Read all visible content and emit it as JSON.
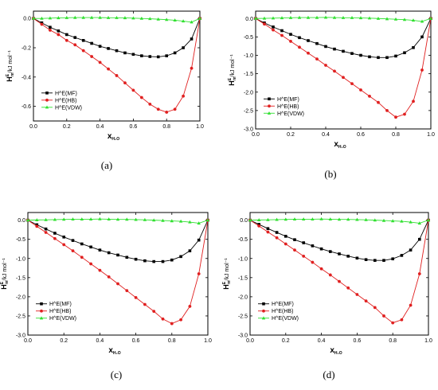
{
  "chart_data": [
    {
      "panel_label": "(a)",
      "type": "line",
      "xlabel": "x",
      "xlabel_sub": "H₂O",
      "ylabel_main": "H",
      "ylabel_sup": "E",
      "ylabel_sub": "m",
      "ylabel_unit": "/kJ mol⁻¹",
      "xlim": [
        0,
        1
      ],
      "ylim": [
        -0.7,
        0.05
      ],
      "xticks": [
        "0.0",
        "0.2",
        "0.4",
        "0.6",
        "0.8",
        "1.0"
      ],
      "yticks": [
        "0.0",
        "-0.2",
        "-0.4",
        "-0.6"
      ],
      "ytick_values": [
        0,
        -0.2,
        -0.4,
        -0.6
      ],
      "legend_position": "lower-left",
      "x": [
        0,
        0.05,
        0.1,
        0.15,
        0.2,
        0.25,
        0.3,
        0.35,
        0.4,
        0.45,
        0.5,
        0.55,
        0.6,
        0.65,
        0.7,
        0.75,
        0.8,
        0.85,
        0.9,
        0.95,
        1.0
      ],
      "series": [
        {
          "name": "H^E(MF)",
          "color": "#000000",
          "marker": "square",
          "values": [
            0,
            -0.03,
            -0.06,
            -0.085,
            -0.11,
            -0.13,
            -0.15,
            -0.17,
            -0.19,
            -0.205,
            -0.22,
            -0.235,
            -0.245,
            -0.255,
            -0.26,
            -0.262,
            -0.255,
            -0.235,
            -0.2,
            -0.14,
            0
          ]
        },
        {
          "name": "H^E(HB)",
          "color": "#e02020",
          "marker": "circle",
          "values": [
            0,
            -0.04,
            -0.08,
            -0.11,
            -0.15,
            -0.18,
            -0.22,
            -0.26,
            -0.3,
            -0.345,
            -0.39,
            -0.44,
            -0.49,
            -0.54,
            -0.585,
            -0.62,
            -0.64,
            -0.62,
            -0.53,
            -0.34,
            0
          ]
        },
        {
          "name": "H^E(VDW)",
          "color": "#30e030",
          "marker": "triangle",
          "values": [
            0,
            0,
            0.002,
            0.004,
            0.005,
            0.006,
            0.006,
            0.006,
            0.006,
            0.005,
            0.005,
            0.004,
            0.002,
            0,
            -0.002,
            -0.005,
            -0.008,
            -0.012,
            -0.018,
            -0.025,
            0
          ]
        }
      ]
    },
    {
      "panel_label": "(b)",
      "type": "line",
      "xlabel": "x",
      "xlabel_sub": "H₂O",
      "ylabel_main": "H",
      "ylabel_sup": "E",
      "ylabel_sub": "m",
      "ylabel_unit": "/kJ mol⁻¹",
      "xlim": [
        0,
        1
      ],
      "ylim": [
        -3.0,
        0.2
      ],
      "xticks": [
        "0.0",
        "0.2",
        "0.4",
        "0.6",
        "0.8",
        "1.0"
      ],
      "yticks": [
        "0.0",
        "-0.5",
        "-1.0",
        "-1.5",
        "-2.0",
        "-2.5",
        "-3.0"
      ],
      "ytick_values": [
        0,
        -0.5,
        -1.0,
        -1.5,
        -2.0,
        -2.5,
        -3.0
      ],
      "legend_position": "lower-left",
      "x": [
        0,
        0.05,
        0.1,
        0.15,
        0.2,
        0.25,
        0.3,
        0.35,
        0.4,
        0.45,
        0.5,
        0.55,
        0.6,
        0.65,
        0.7,
        0.75,
        0.8,
        0.85,
        0.9,
        0.95,
        1.0
      ],
      "series": [
        {
          "name": "H^E(MF)",
          "color": "#000000",
          "marker": "square",
          "values": [
            0,
            -0.12,
            -0.23,
            -0.33,
            -0.43,
            -0.52,
            -0.6,
            -0.68,
            -0.76,
            -0.83,
            -0.89,
            -0.95,
            -1.0,
            -1.04,
            -1.06,
            -1.06,
            -1.02,
            -0.93,
            -0.79,
            -0.5,
            0
          ]
        },
        {
          "name": "H^E(HB)",
          "color": "#e02020",
          "marker": "circle",
          "values": [
            0,
            -0.15,
            -0.31,
            -0.46,
            -0.62,
            -0.78,
            -0.94,
            -1.1,
            -1.27,
            -1.43,
            -1.6,
            -1.77,
            -1.94,
            -2.11,
            -2.28,
            -2.5,
            -2.68,
            -2.6,
            -2.25,
            -1.4,
            0
          ]
        },
        {
          "name": "H^E(VDW)",
          "color": "#30e030",
          "marker": "triangle",
          "values": [
            0,
            0.005,
            0.01,
            0.015,
            0.02,
            0.025,
            0.025,
            0.025,
            0.03,
            0.025,
            0.02,
            0.02,
            0.015,
            0.01,
            0,
            -0.01,
            -0.02,
            -0.03,
            -0.05,
            -0.08,
            0
          ]
        }
      ]
    },
    {
      "panel_label": "(c)",
      "type": "line",
      "xlabel": "x",
      "xlabel_sub": "H₂O",
      "ylabel_main": "H",
      "ylabel_sup": "E",
      "ylabel_sub": "m",
      "ylabel_unit": "/kJ mol⁻¹",
      "xlim": [
        0,
        1
      ],
      "ylim": [
        -3.0,
        0.2
      ],
      "xticks": [
        "0.0",
        "0.2",
        "0.4",
        "0.6",
        "0.8",
        "1.0"
      ],
      "yticks": [
        "0.0",
        "-0.5",
        "-1.0",
        "-1.5",
        "-2.0",
        "-2.5",
        "-3.0"
      ],
      "ytick_values": [
        0,
        -0.5,
        -1.0,
        -1.5,
        -2.0,
        -2.5,
        -3.0
      ],
      "legend_position": "lower-left",
      "x": [
        0,
        0.05,
        0.1,
        0.15,
        0.2,
        0.25,
        0.3,
        0.35,
        0.4,
        0.45,
        0.5,
        0.55,
        0.6,
        0.65,
        0.7,
        0.75,
        0.8,
        0.85,
        0.9,
        0.95,
        1.0
      ],
      "series": [
        {
          "name": "H^E(MF)",
          "color": "#000000",
          "marker": "square",
          "values": [
            0,
            -0.12,
            -0.23,
            -0.34,
            -0.44,
            -0.53,
            -0.62,
            -0.7,
            -0.78,
            -0.85,
            -0.91,
            -0.97,
            -1.02,
            -1.06,
            -1.08,
            -1.08,
            -1.04,
            -0.95,
            -0.8,
            -0.52,
            0
          ]
        },
        {
          "name": "H^E(HB)",
          "color": "#e02020",
          "marker": "circle",
          "values": [
            0,
            -0.16,
            -0.32,
            -0.48,
            -0.64,
            -0.8,
            -0.97,
            -1.14,
            -1.31,
            -1.48,
            -1.66,
            -1.84,
            -2.02,
            -2.2,
            -2.38,
            -2.58,
            -2.7,
            -2.6,
            -2.25,
            -1.4,
            0
          ]
        },
        {
          "name": "H^E(VDW)",
          "color": "#30e030",
          "marker": "triangle",
          "values": [
            0,
            0.005,
            0.01,
            0.015,
            0.02,
            0.025,
            0.025,
            0.025,
            0.03,
            0.025,
            0.02,
            0.02,
            0.015,
            0.01,
            0,
            -0.01,
            -0.02,
            -0.03,
            -0.05,
            -0.08,
            0
          ]
        }
      ]
    },
    {
      "panel_label": "(d)",
      "type": "line",
      "xlabel": "x",
      "xlabel_sub": "H₂O",
      "ylabel_main": "H",
      "ylabel_sup": "E",
      "ylabel_sub": "m",
      "ylabel_unit": "/kJ mol⁻¹",
      "xlim": [
        0,
        1
      ],
      "ylim": [
        -3.0,
        0.2
      ],
      "xticks": [
        "0.0",
        "0.2",
        "0.4",
        "0.6",
        "0.8",
        "1.0"
      ],
      "yticks": [
        "0.0",
        "-0.5",
        "-1.0",
        "-1.5",
        "-2.0",
        "-2.5",
        "-3.0"
      ],
      "ytick_values": [
        0,
        -0.5,
        -1.0,
        -1.5,
        -2.0,
        -2.5,
        -3.0
      ],
      "legend_position": "lower-left",
      "x": [
        0,
        0.05,
        0.1,
        0.15,
        0.2,
        0.25,
        0.3,
        0.35,
        0.4,
        0.45,
        0.5,
        0.55,
        0.6,
        0.65,
        0.7,
        0.75,
        0.8,
        0.85,
        0.9,
        0.95,
        1.0
      ],
      "series": [
        {
          "name": "H^E(MF)",
          "color": "#000000",
          "marker": "square",
          "values": [
            0,
            -0.11,
            -0.22,
            -0.32,
            -0.42,
            -0.51,
            -0.59,
            -0.67,
            -0.75,
            -0.82,
            -0.88,
            -0.94,
            -0.99,
            -1.03,
            -1.05,
            -1.05,
            -1.01,
            -0.92,
            -0.78,
            -0.5,
            0
          ]
        },
        {
          "name": "H^E(HB)",
          "color": "#e02020",
          "marker": "circle",
          "values": [
            0,
            -0.15,
            -0.31,
            -0.46,
            -0.62,
            -0.78,
            -0.94,
            -1.1,
            -1.27,
            -1.43,
            -1.6,
            -1.77,
            -1.94,
            -2.11,
            -2.28,
            -2.5,
            -2.68,
            -2.6,
            -2.22,
            -1.4,
            0
          ]
        },
        {
          "name": "H^E(VDW)",
          "color": "#30e030",
          "marker": "triangle",
          "values": [
            0,
            0.005,
            0.01,
            0.015,
            0.02,
            0.025,
            0.025,
            0.025,
            0.03,
            0.025,
            0.02,
            0.02,
            0.015,
            0.01,
            0,
            -0.01,
            -0.02,
            -0.03,
            -0.05,
            -0.08,
            0
          ]
        }
      ]
    }
  ]
}
